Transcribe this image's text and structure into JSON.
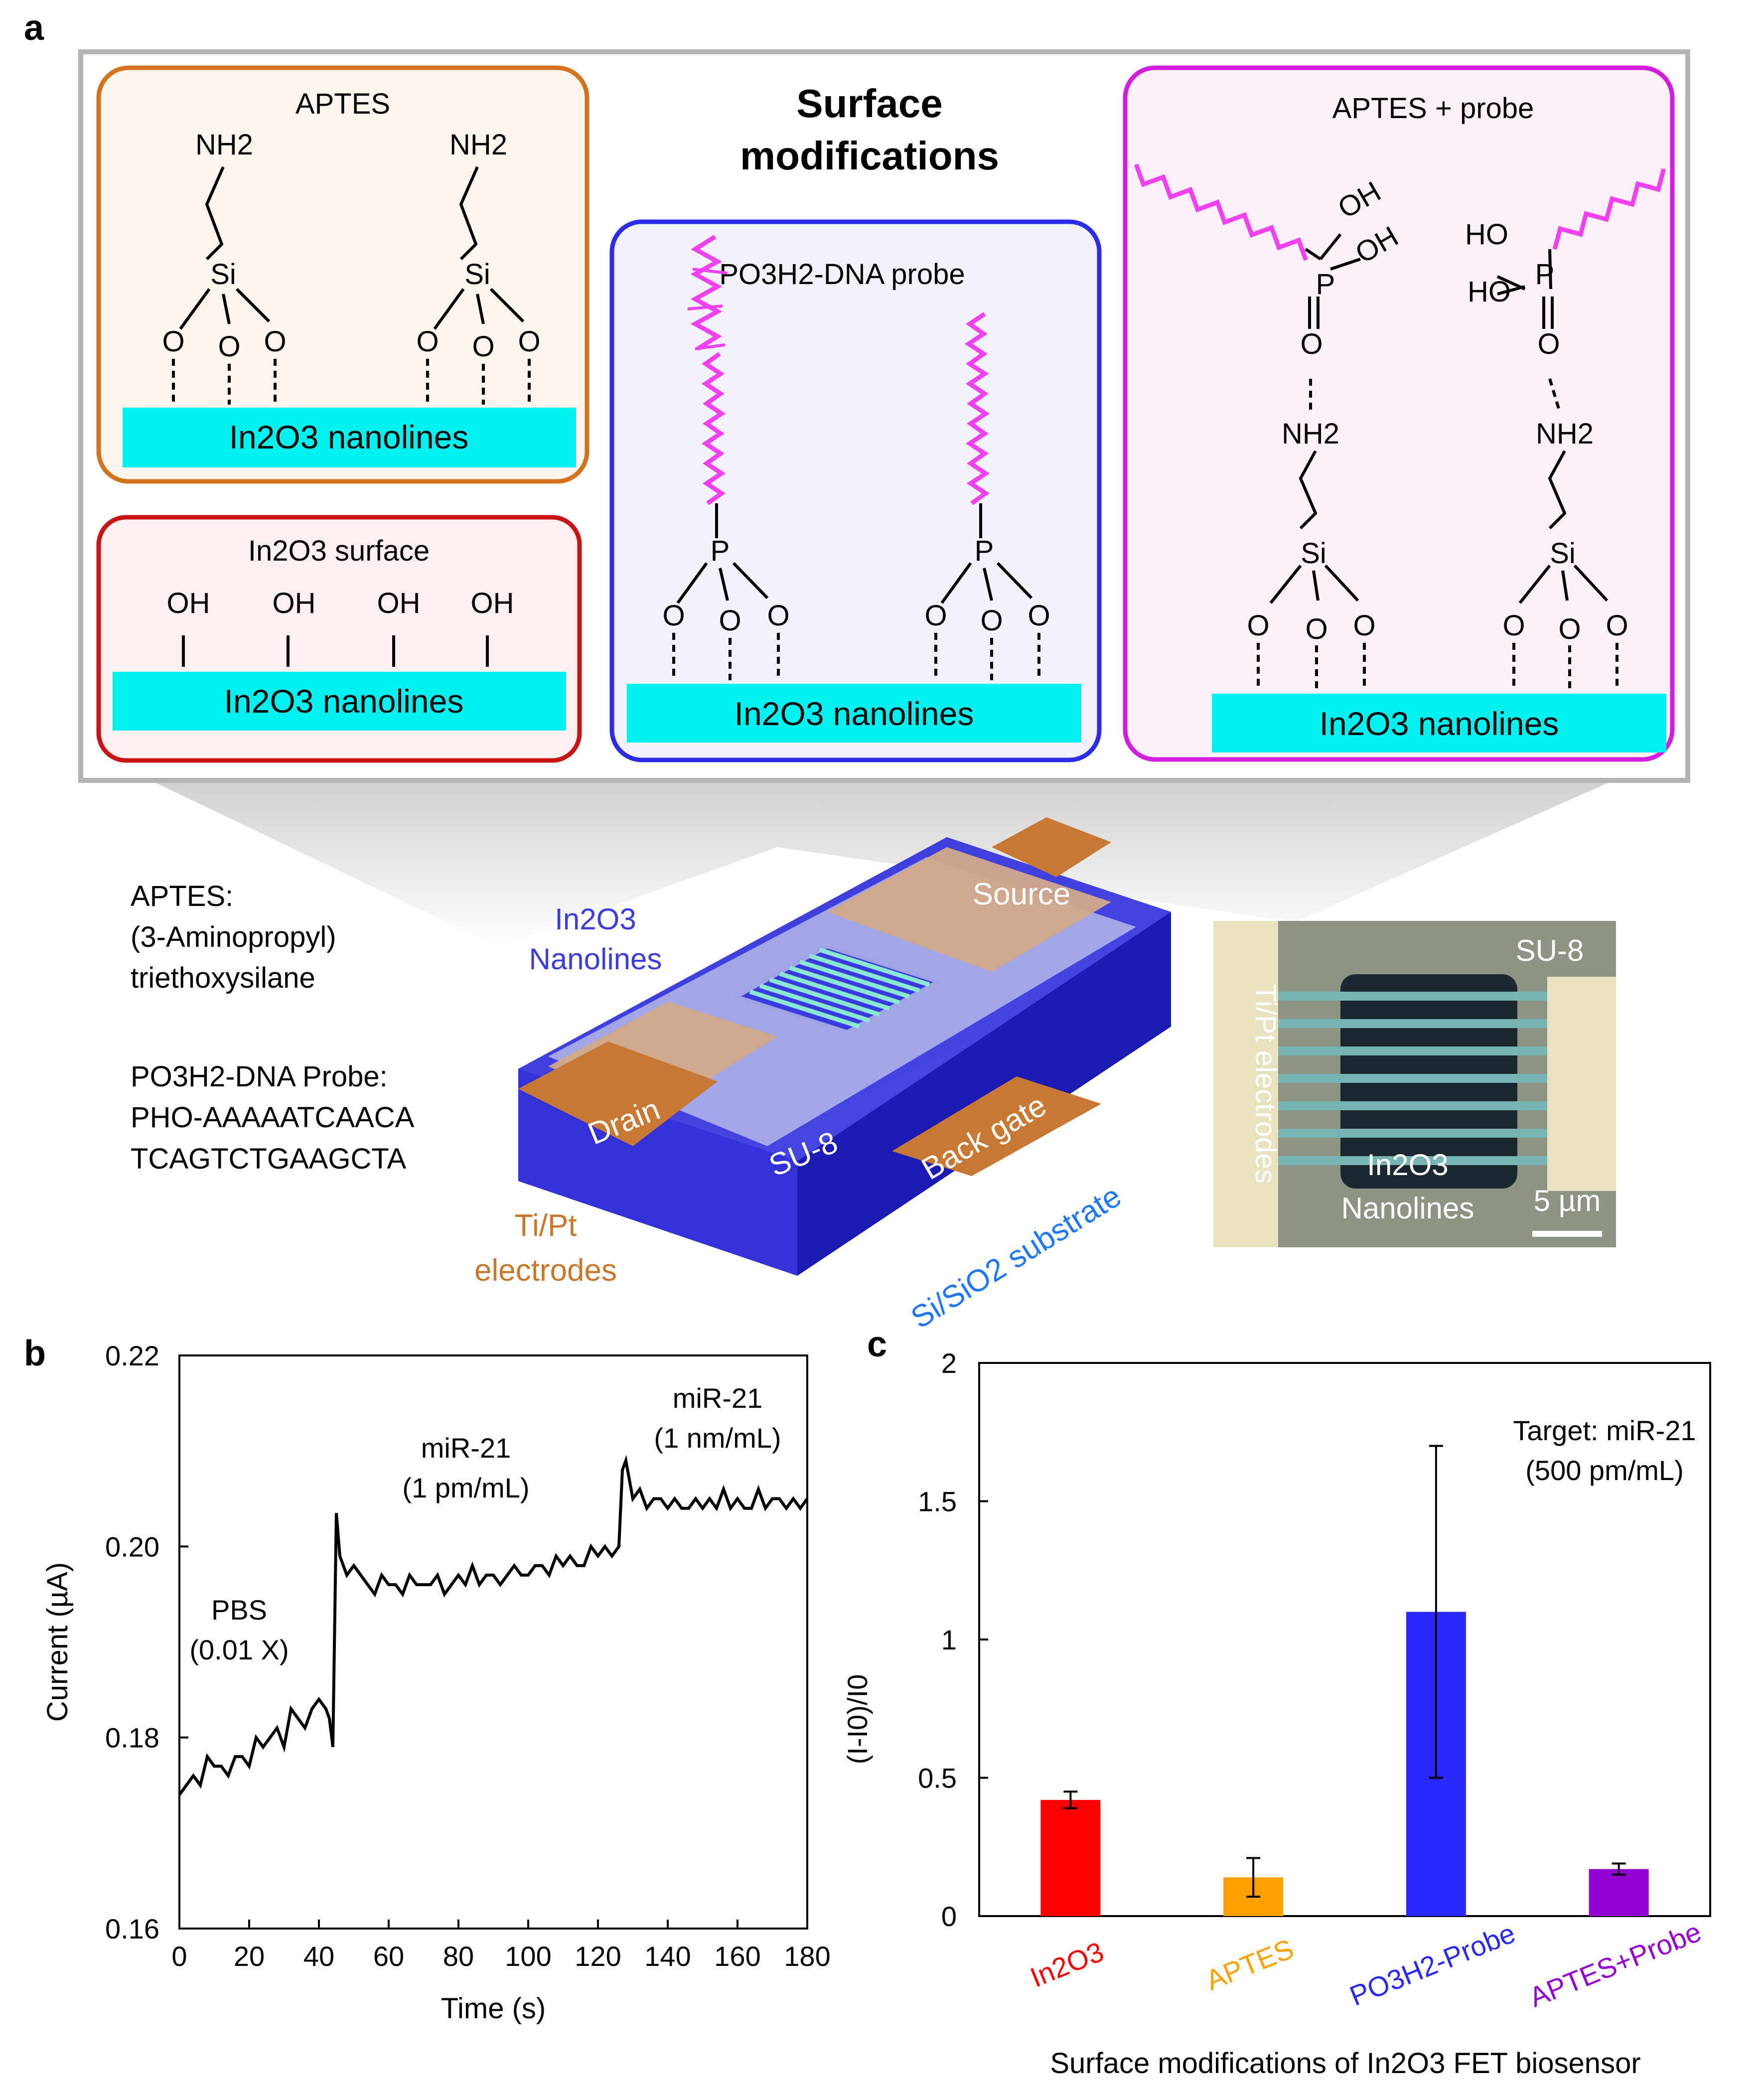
{
  "panel_letters": {
    "a": "a",
    "b": "b",
    "c": "c"
  },
  "panel_a": {
    "title_line1": "Surface",
    "title_line2": "modifications",
    "aptes_box": {
      "title": "APTES",
      "nh2": "NH2",
      "si": "Si",
      "o": "O",
      "substrate": "In2O3 nanolines"
    },
    "in2o3_box": {
      "title": "In2O3 surface",
      "oh": "OH",
      "substrate": "In2O3 nanolines"
    },
    "dna_box": {
      "title": "PO3H2-DNA probe",
      "p": "P",
      "o": "O",
      "substrate": "In2O3 nanolines"
    },
    "aptes_probe_box": {
      "title": "APTES + probe",
      "oh": "OH",
      "ho": "HO",
      "p": "P",
      "o": "O",
      "nh2": "NH2",
      "si": "Si",
      "substrate": "In2O3 nanolines"
    },
    "legend": {
      "aptes_line1": "APTES:",
      "aptes_line2": "(3-Aminopropyl)",
      "aptes_line3": "triethoxysilane",
      "probe_line1": "PO3H2-DNA Probe:",
      "probe_line2": "PHO-AAAAATCAACA",
      "probe_line3": "TCAGTCTGAAGCTA"
    },
    "device": {
      "in2o3": "In2O3",
      "nanolines": "Nanolines",
      "source": "Source",
      "drain": "Drain",
      "su8": "SU-8",
      "back_gate": "Back gate",
      "substrate": "Si/SiO2 substrate",
      "tipt_line1": "Ti/Pt",
      "tipt_line2": "electrodes"
    },
    "micrograph": {
      "su8": "SU-8",
      "electrodes": "Ti/Pt electrodes",
      "in2o3": "In2O3",
      "nanolines": "Nanolines",
      "scale": "5 µm"
    }
  },
  "chart_data": [
    {
      "type": "line",
      "panel": "b",
      "xlabel": "Time (s)",
      "ylabel": "Current (µA)",
      "xlim": [
        0,
        180
      ],
      "ylim": [
        0.16,
        0.22
      ],
      "xticks": [
        0,
        20,
        40,
        60,
        80,
        100,
        120,
        140,
        160,
        180
      ],
      "yticks": [
        0.16,
        0.18,
        0.2,
        0.22
      ],
      "ytick_labels": [
        "0.16",
        "0.18",
        "0.20",
        "0.22"
      ],
      "series": [
        {
          "name": "current",
          "x": [
            0,
            2,
            4,
            6,
            8,
            10,
            12,
            14,
            16,
            18,
            20,
            22,
            24,
            26,
            28,
            30,
            32,
            34,
            36,
            38,
            40,
            42,
            43,
            44,
            45,
            46,
            48,
            50,
            52,
            54,
            56,
            58,
            60,
            62,
            64,
            66,
            68,
            70,
            72,
            74,
            76,
            78,
            80,
            82,
            84,
            86,
            88,
            90,
            92,
            94,
            96,
            98,
            100,
            102,
            104,
            106,
            108,
            110,
            112,
            114,
            116,
            118,
            120,
            122,
            124,
            126,
            127,
            128,
            130,
            132,
            134,
            136,
            138,
            140,
            142,
            144,
            146,
            148,
            150,
            152,
            154,
            156,
            158,
            160,
            162,
            164,
            166,
            168,
            170,
            172,
            174,
            176,
            178,
            180
          ],
          "values": [
            0.174,
            0.175,
            0.176,
            0.175,
            0.178,
            0.177,
            0.177,
            0.176,
            0.178,
            0.178,
            0.177,
            0.18,
            0.179,
            0.18,
            0.181,
            0.179,
            0.183,
            0.182,
            0.181,
            0.183,
            0.184,
            0.183,
            0.182,
            0.179,
            0.2035,
            0.199,
            0.197,
            0.198,
            0.197,
            0.196,
            0.195,
            0.197,
            0.196,
            0.196,
            0.195,
            0.197,
            0.196,
            0.196,
            0.196,
            0.197,
            0.195,
            0.196,
            0.197,
            0.196,
            0.198,
            0.196,
            0.197,
            0.197,
            0.196,
            0.197,
            0.198,
            0.197,
            0.197,
            0.198,
            0.198,
            0.197,
            0.199,
            0.198,
            0.199,
            0.198,
            0.198,
            0.2,
            0.199,
            0.2,
            0.199,
            0.2,
            0.208,
            0.209,
            0.205,
            0.206,
            0.204,
            0.205,
            0.205,
            0.204,
            0.205,
            0.204,
            0.204,
            0.205,
            0.204,
            0.205,
            0.204,
            0.206,
            0.204,
            0.205,
            0.204,
            0.204,
            0.206,
            0.204,
            0.205,
            0.205,
            0.204,
            0.205,
            0.204,
            0.205
          ]
        }
      ],
      "annotations": [
        {
          "line1": "PBS",
          "line2": "(0.01 X)"
        },
        {
          "line1": "miR-21",
          "line2": "(1 pm/mL)"
        },
        {
          "line1": "miR-21",
          "line2": "(1 nm/mL)"
        }
      ]
    },
    {
      "type": "bar",
      "panel": "c",
      "title": "",
      "xlabel": "Surface modifications of In2O3 FET biosensor",
      "ylabel": "(I-I0)/I0",
      "ylim": [
        0,
        2
      ],
      "yticks": [
        0,
        0.5,
        1,
        1.5,
        2
      ],
      "ytick_labels": [
        "0",
        "0.5",
        "1",
        "1.5",
        "2"
      ],
      "categories": [
        "In2O3",
        "APTES",
        "PO3H2-Probe",
        "APTES+Probe"
      ],
      "values": [
        0.42,
        0.14,
        1.1,
        0.17
      ],
      "errors": [
        0.03,
        0.07,
        0.6,
        0.02
      ],
      "colors": [
        "#ff0000",
        "#ffa000",
        "#2828ff",
        "#9400d3"
      ],
      "annotation_line1": "Target: miR-21",
      "annotation_line2": "(500 pm/mL)"
    }
  ]
}
